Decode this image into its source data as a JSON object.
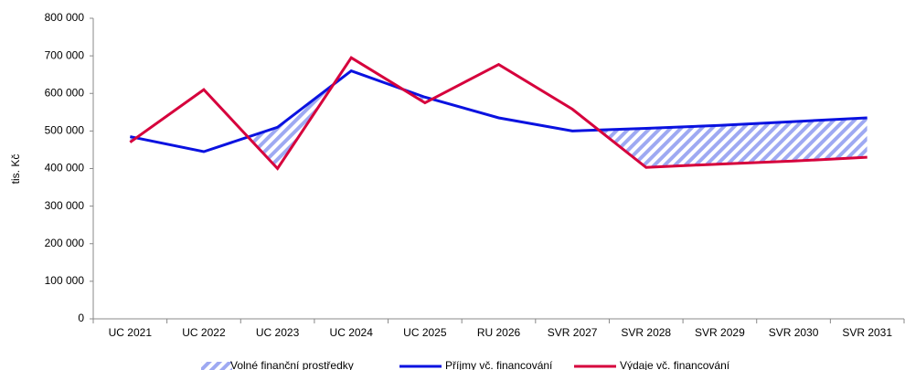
{
  "chart_data": {
    "type": "line",
    "y_label": "tis. Kč",
    "categories": [
      "UC 2021",
      "UC 2022",
      "UC 2023",
      "UC 2024",
      "UC 2025",
      "RU 2026",
      "SVR 2027",
      "SVR 2028",
      "SVR 2029",
      "SVR 2030",
      "SVR 2031"
    ],
    "series": [
      {
        "name": "Příjmy vč. financování",
        "color": "#0a12e0",
        "values": [
          485000,
          445000,
          510000,
          660000,
          590000,
          535000,
          500000,
          507000,
          515000,
          525000,
          535000
        ]
      },
      {
        "name": "Výdaje vč. financování",
        "color": "#d6003c",
        "values": [
          470000,
          610000,
          400000,
          695000,
          575000,
          677000,
          558000,
          403000,
          412000,
          420000,
          430000
        ]
      }
    ],
    "fill": {
      "name": "Volné finanční prostředky",
      "color": "#9ea9f2"
    },
    "ylim": [
      0,
      800000
    ],
    "yticks": [
      0,
      {
        "value": 100000,
        "label": "100 000"
      },
      {
        "value": 200000,
        "label": "200 000"
      },
      {
        "value": 300000,
        "label": "300 000"
      },
      {
        "value": 400000,
        "label": "400 000"
      },
      {
        "value": 500000,
        "label": "500 000"
      },
      {
        "value": 600000,
        "label": "600 000"
      },
      {
        "value": 700000,
        "label": "700 000"
      },
      {
        "value": 800000,
        "label": "800 000"
      }
    ],
    "legend": "bottom"
  }
}
